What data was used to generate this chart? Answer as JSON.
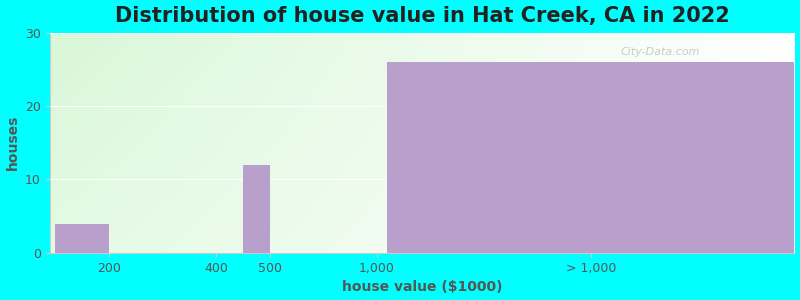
{
  "title": "Distribution of house value in Hat Creek, CA in 2022",
  "xlabel": "house value ($1000)",
  "ylabel": "houses",
  "categories": [
    "200",
    "400",
    "500",
    "1,000",
    "> 1,000"
  ],
  "values": [
    4,
    0,
    12,
    0,
    26
  ],
  "bar_color": "#b89fcc",
  "background_color": "#00ffff",
  "ylim": [
    0,
    30
  ],
  "yticks": [
    0,
    10,
    20,
    30
  ],
  "title_fontsize": 15,
  "label_fontsize": 10,
  "tick_fontsize": 9,
  "watermark": "City-Data.com",
  "x_tick_positions": [
    0.5,
    1.5,
    2.0,
    3.0,
    5.0
  ],
  "bar_centers": [
    0.25,
    999,
    1.875,
    999,
    5.0
  ],
  "bar_widths": [
    0.5,
    0,
    0.25,
    0,
    3.8
  ],
  "xlim": [
    -0.05,
    6.9
  ]
}
